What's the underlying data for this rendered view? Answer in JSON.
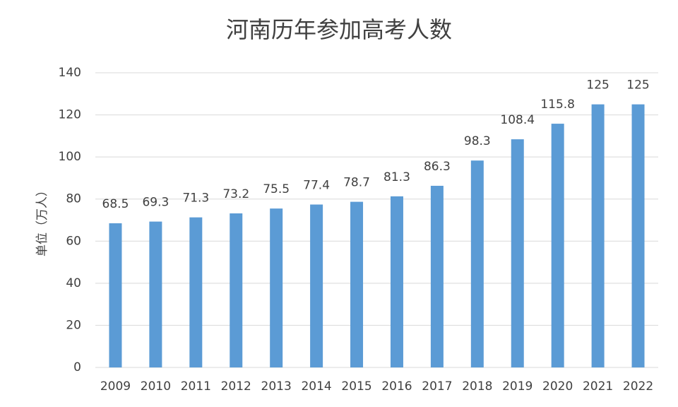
{
  "chart_data": {
    "type": "bar",
    "title": "河南历年参加高考人数",
    "y_label": "单位（万人）",
    "categories": [
      "2009",
      "2010",
      "2011",
      "2012",
      "2013",
      "2014",
      "2015",
      "2016",
      "2017",
      "2018",
      "2019",
      "2020",
      "2021",
      "2022"
    ],
    "values": [
      68.5,
      69.3,
      71.3,
      73.2,
      75.5,
      77.4,
      78.7,
      81.3,
      86.3,
      98.3,
      108.4,
      115.8,
      125,
      125
    ],
    "color": "#5b9bd5",
    "ylim": [
      0,
      140
    ],
    "yticks": [
      0,
      20,
      40,
      60,
      80,
      100,
      120,
      140
    ],
    "grid": true
  }
}
